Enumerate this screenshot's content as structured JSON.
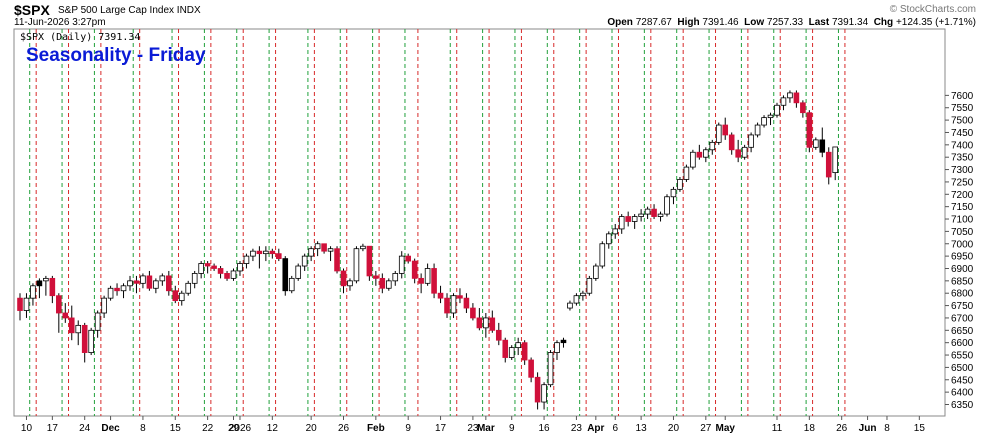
{
  "header": {
    "symbol": "$SPX",
    "description": "S&P 500 Large Cap Index  INDX",
    "date": "11-Jun-2026 3:27pm",
    "watermark": "© StockCharts.com",
    "open_label": "Open",
    "open": "7287.67",
    "high_label": "High",
    "high": "7391.46",
    "low_label": "Low",
    "low": "7257.33",
    "last_label": "Last",
    "last": "7391.34",
    "chg_label": "Chg",
    "chg": "+124.35 (+1.71%)"
  },
  "legend_text": "$SPX (Daily) 7391.34",
  "colors": {
    "up": "#ffffff",
    "down": "#d0103a",
    "friday_line": "#21a03b",
    "monday_line": "#d72a2a",
    "highlight": "#f4e04d",
    "title": "#0a1bd6"
  },
  "chart_data": {
    "type": "candlestick",
    "title": "Seasonality - Friday",
    "ylim": [
      6300,
      7650
    ],
    "y_ticks": [
      6350,
      6400,
      6450,
      6500,
      6550,
      6600,
      6650,
      6700,
      6750,
      6800,
      6850,
      6900,
      6950,
      7000,
      7050,
      7100,
      7150,
      7200,
      7250,
      7300,
      7350,
      7400,
      7450,
      7500,
      7550,
      7600
    ],
    "x_ticks": [
      "10",
      "17",
      "24",
      "Dec",
      "8",
      "15",
      "22",
      "29",
      "2026",
      "12",
      "20",
      "26",
      "Feb",
      "9",
      "17",
      "23",
      "Mar",
      "9",
      "16",
      "23",
      "Apr",
      "6",
      "13",
      "20",
      "27",
      "May",
      "11",
      "18",
      "26",
      "Jun",
      "8",
      "15"
    ],
    "bars": [
      [
        6780,
        6800,
        6690,
        6730
      ],
      [
        6730,
        6800,
        6700,
        6780
      ],
      [
        6780,
        6840,
        6750,
        6830
      ],
      [
        6830,
        6860,
        6780,
        6850
      ],
      [
        6850,
        6870,
        6790,
        6860
      ],
      [
        6860,
        6870,
        6760,
        6790
      ],
      [
        6790,
        6800,
        6640,
        6720
      ],
      [
        6720,
        6760,
        6680,
        6700
      ],
      [
        6700,
        6750,
        6610,
        6640
      ],
      [
        6640,
        6690,
        6590,
        6670
      ],
      [
        6670,
        6680,
        6520,
        6560
      ],
      [
        6560,
        6660,
        6550,
        6650
      ],
      [
        6650,
        6730,
        6620,
        6720
      ],
      [
        6720,
        6790,
        6700,
        6780
      ],
      [
        6780,
        6830,
        6770,
        6820
      ],
      [
        6820,
        6840,
        6790,
        6810
      ],
      [
        6810,
        6840,
        6780,
        6830
      ],
      [
        6830,
        6870,
        6810,
        6850
      ],
      [
        6850,
        6870,
        6800,
        6840
      ],
      [
        6840,
        6880,
        6820,
        6870
      ],
      [
        6870,
        6890,
        6810,
        6820
      ],
      [
        6820,
        6860,
        6800,
        6850
      ],
      [
        6850,
        6880,
        6830,
        6870
      ],
      [
        6870,
        6890,
        6790,
        6810
      ],
      [
        6810,
        6830,
        6760,
        6770
      ],
      [
        6770,
        6810,
        6750,
        6800
      ],
      [
        6800,
        6850,
        6790,
        6840
      ],
      [
        6840,
        6890,
        6820,
        6880
      ],
      [
        6880,
        6930,
        6860,
        6920
      ],
      [
        6920,
        6930,
        6880,
        6910
      ],
      [
        6910,
        6920,
        6890,
        6900
      ],
      [
        6900,
        6910,
        6860,
        6880
      ],
      [
        6880,
        6890,
        6850,
        6860
      ],
      [
        6860,
        6900,
        6850,
        6890
      ],
      [
        6890,
        6930,
        6870,
        6920
      ],
      [
        6920,
        6960,
        6900,
        6950
      ],
      [
        6950,
        6980,
        6930,
        6970
      ],
      [
        6970,
        6990,
        6900,
        6960
      ],
      [
        6960,
        6990,
        6930,
        6970
      ],
      [
        6970,
        6980,
        6940,
        6960
      ],
      [
        6960,
        6980,
        6930,
        6940
      ],
      [
        6940,
        6950,
        6790,
        6810
      ],
      [
        6810,
        6870,
        6800,
        6860
      ],
      [
        6860,
        6920,
        6850,
        6910
      ],
      [
        6910,
        6960,
        6890,
        6950
      ],
      [
        6950,
        6990,
        6930,
        6980
      ],
      [
        6980,
        7010,
        6950,
        7000
      ],
      [
        7000,
        7000,
        6960,
        6970
      ],
      [
        6970,
        6990,
        6930,
        6980
      ],
      [
        6980,
        6990,
        6880,
        6890
      ],
      [
        6890,
        6900,
        6800,
        6830
      ],
      [
        6830,
        6860,
        6810,
        6850
      ],
      [
        6850,
        6990,
        6840,
        6980
      ],
      [
        6980,
        7000,
        6970,
        6990
      ],
      [
        6990,
        6990,
        6850,
        6870
      ],
      [
        6870,
        6890,
        6830,
        6860
      ],
      [
        6860,
        6880,
        6800,
        6820
      ],
      [
        6820,
        6860,
        6810,
        6850
      ],
      [
        6850,
        6890,
        6830,
        6880
      ],
      [
        6880,
        6970,
        6860,
        6950
      ],
      [
        6950,
        6960,
        6920,
        6930
      ],
      [
        6930,
        6940,
        6840,
        6860
      ],
      [
        6860,
        6880,
        6800,
        6840
      ],
      [
        6840,
        6920,
        6830,
        6900
      ],
      [
        6900,
        6920,
        6780,
        6800
      ],
      [
        6800,
        6830,
        6760,
        6780
      ],
      [
        6780,
        6800,
        6700,
        6720
      ],
      [
        6720,
        6800,
        6700,
        6790
      ],
      [
        6790,
        6820,
        6760,
        6780
      ],
      [
        6780,
        6800,
        6720,
        6740
      ],
      [
        6740,
        6760,
        6690,
        6700
      ],
      [
        6700,
        6740,
        6650,
        6660
      ],
      [
        6660,
        6720,
        6620,
        6700
      ],
      [
        6700,
        6730,
        6640,
        6650
      ],
      [
        6650,
        6680,
        6590,
        6610
      ],
      [
        6610,
        6620,
        6520,
        6540
      ],
      [
        6540,
        6590,
        6530,
        6580
      ],
      [
        6580,
        6620,
        6550,
        6600
      ],
      [
        6600,
        6610,
        6510,
        6530
      ],
      [
        6530,
        6540,
        6440,
        6460
      ],
      [
        6460,
        6480,
        6330,
        6360
      ],
      [
        6360,
        6440,
        6330,
        6430
      ],
      [
        6430,
        6570,
        6420,
        6560
      ],
      [
        6560,
        6610,
        6530,
        6600
      ],
      [
        6600,
        6620,
        6580,
        6610
      ],
      [
        6740,
        6770,
        6730,
        6760
      ],
      [
        6760,
        6800,
        6750,
        6790
      ],
      [
        6790,
        6810,
        6770,
        6800
      ],
      [
        6800,
        6870,
        6790,
        6860
      ],
      [
        6860,
        6920,
        6850,
        6910
      ],
      [
        6910,
        7010,
        6900,
        7000
      ],
      [
        7000,
        7050,
        6980,
        7040
      ],
      [
        7040,
        7080,
        7020,
        7060
      ],
      [
        7060,
        7120,
        7040,
        7110
      ],
      [
        7110,
        7130,
        7070,
        7090
      ],
      [
        7090,
        7120,
        7060,
        7110
      ],
      [
        7110,
        7140,
        7090,
        7120
      ],
      [
        7120,
        7150,
        7100,
        7140
      ],
      [
        7140,
        7160,
        7100,
        7110
      ],
      [
        7110,
        7130,
        7090,
        7120
      ],
      [
        7120,
        7200,
        7110,
        7190
      ],
      [
        7190,
        7230,
        7160,
        7220
      ],
      [
        7220,
        7270,
        7210,
        7260
      ],
      [
        7260,
        7320,
        7250,
        7310
      ],
      [
        7310,
        7380,
        7300,
        7370
      ],
      [
        7370,
        7400,
        7340,
        7350
      ],
      [
        7350,
        7390,
        7330,
        7380
      ],
      [
        7380,
        7420,
        7360,
        7410
      ],
      [
        7410,
        7490,
        7400,
        7480
      ],
      [
        7480,
        7510,
        7420,
        7440
      ],
      [
        7440,
        7450,
        7360,
        7380
      ],
      [
        7380,
        7420,
        7330,
        7350
      ],
      [
        7350,
        7400,
        7340,
        7390
      ],
      [
        7390,
        7450,
        7370,
        7440
      ],
      [
        7440,
        7490,
        7430,
        7480
      ],
      [
        7480,
        7520,
        7470,
        7510
      ],
      [
        7510,
        7530,
        7480,
        7520
      ],
      [
        7520,
        7570,
        7510,
        7560
      ],
      [
        7560,
        7600,
        7540,
        7590
      ],
      [
        7590,
        7620,
        7570,
        7610
      ],
      [
        7610,
        7620,
        7550,
        7570
      ],
      [
        7570,
        7580,
        7510,
        7530
      ],
      [
        7530,
        7540,
        7370,
        7390
      ],
      [
        7390,
        7430,
        7380,
        7420
      ],
      [
        7420,
        7470,
        7350,
        7370
      ],
      [
        7370,
        7390,
        7240,
        7270
      ],
      [
        7287.67,
        7391.46,
        7257.33,
        7391.34
      ]
    ],
    "black_candle_indices": [
      3,
      41,
      84,
      124
    ],
    "highlight_index": 129,
    "friday_line_indices": [
      1,
      6,
      11,
      17,
      23,
      28,
      33,
      38,
      44,
      49,
      54,
      59,
      66,
      71,
      76,
      81,
      86,
      91,
      96,
      101,
      106,
      111,
      116,
      121,
      126
    ],
    "monday_line_indices": [
      3,
      8,
      13,
      19,
      25,
      30,
      35,
      40,
      46,
      51,
      56,
      62,
      68,
      73,
      78,
      83,
      88,
      93,
      98,
      103,
      108,
      113,
      118,
      123,
      128
    ],
    "x_tick_indices": [
      1,
      5,
      10,
      14,
      19,
      24,
      29,
      33,
      34,
      39,
      45,
      50,
      55,
      60,
      65,
      70,
      72,
      76,
      81,
      86,
      89,
      92,
      96,
      101,
      106,
      109,
      117,
      122,
      127,
      131,
      134,
      139
    ]
  }
}
